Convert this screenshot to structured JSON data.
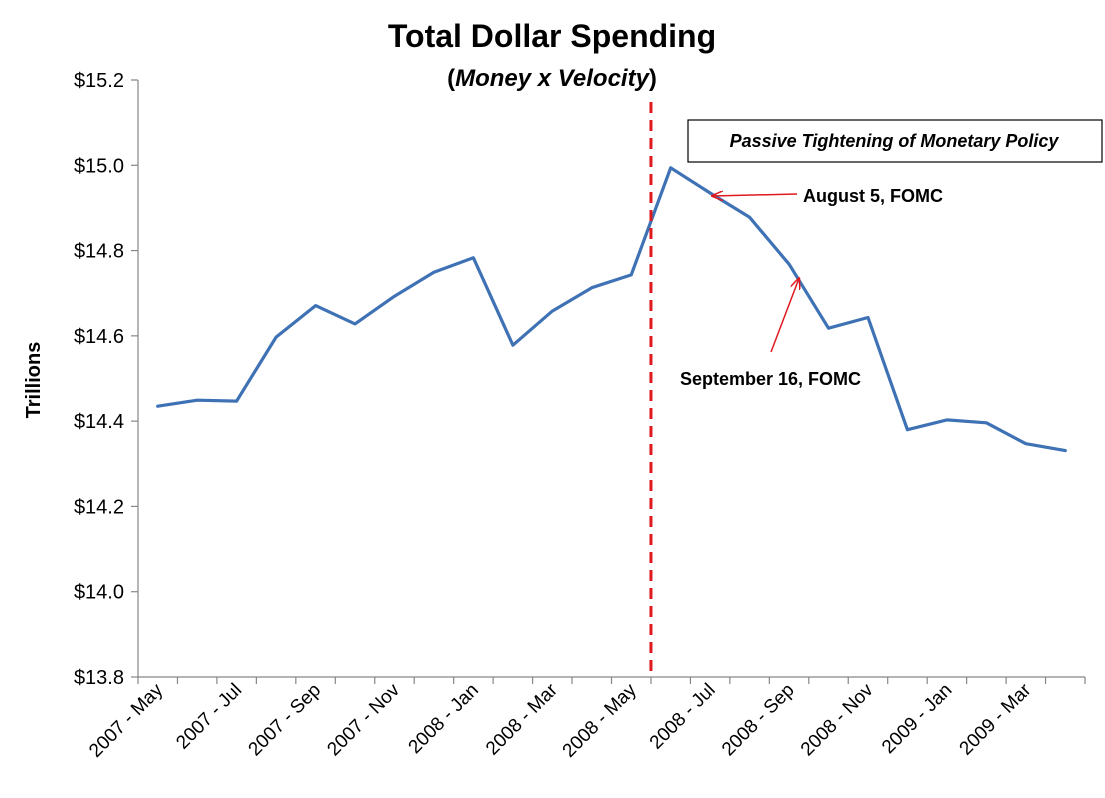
{
  "chart_data": {
    "type": "line",
    "title": "Total Dollar Spending",
    "subtitle_open": "(",
    "subtitle_italic": "Money x Velocity",
    "subtitle_close": ")",
    "xlabel": "",
    "ylabel": "Trillions",
    "ylim": [
      13.8,
      15.2
    ],
    "y_ticks": [
      13.8,
      14.0,
      14.2,
      14.4,
      14.6,
      14.8,
      15.0,
      15.2
    ],
    "y_tick_labels": [
      "$13.8",
      "$14.0",
      "$14.2",
      "$14.4",
      "$14.6",
      "$14.8",
      "$15.0",
      "$15.2"
    ],
    "x_tick_labels": [
      "2007 - May",
      "2007 - Jul",
      "2007 - Sep",
      "2007 - Nov",
      "2008 - Jan",
      "2008 - Mar",
      "2008 - May",
      "2008 - Jul",
      "2008 - Sep",
      "2008 - Nov",
      "2009 - Jan",
      "2009 - Mar"
    ],
    "series": [
      {
        "name": "Total Dollar Spending",
        "color": "#3f72b5",
        "values": [
          14.435,
          14.449,
          14.447,
          14.597,
          14.671,
          14.628,
          14.693,
          14.749,
          14.783,
          14.578,
          14.658,
          14.713,
          14.743,
          14.994,
          14.935,
          14.878,
          14.768,
          14.618,
          14.643,
          14.38,
          14.403,
          14.396,
          14.347,
          14.331
        ]
      }
    ],
    "marker_line": {
      "color": "#e0191e",
      "between_point_index": 12.5
    },
    "annotation_box": "Passive Tightening of Monetary Policy",
    "annotations": [
      {
        "text": "August 5, FOMC",
        "point_index": 14,
        "arrow_color": "#e0191e"
      },
      {
        "text": "September 16, FOMC",
        "point_index": 16,
        "arrow_color": "#e0191e"
      }
    ]
  }
}
